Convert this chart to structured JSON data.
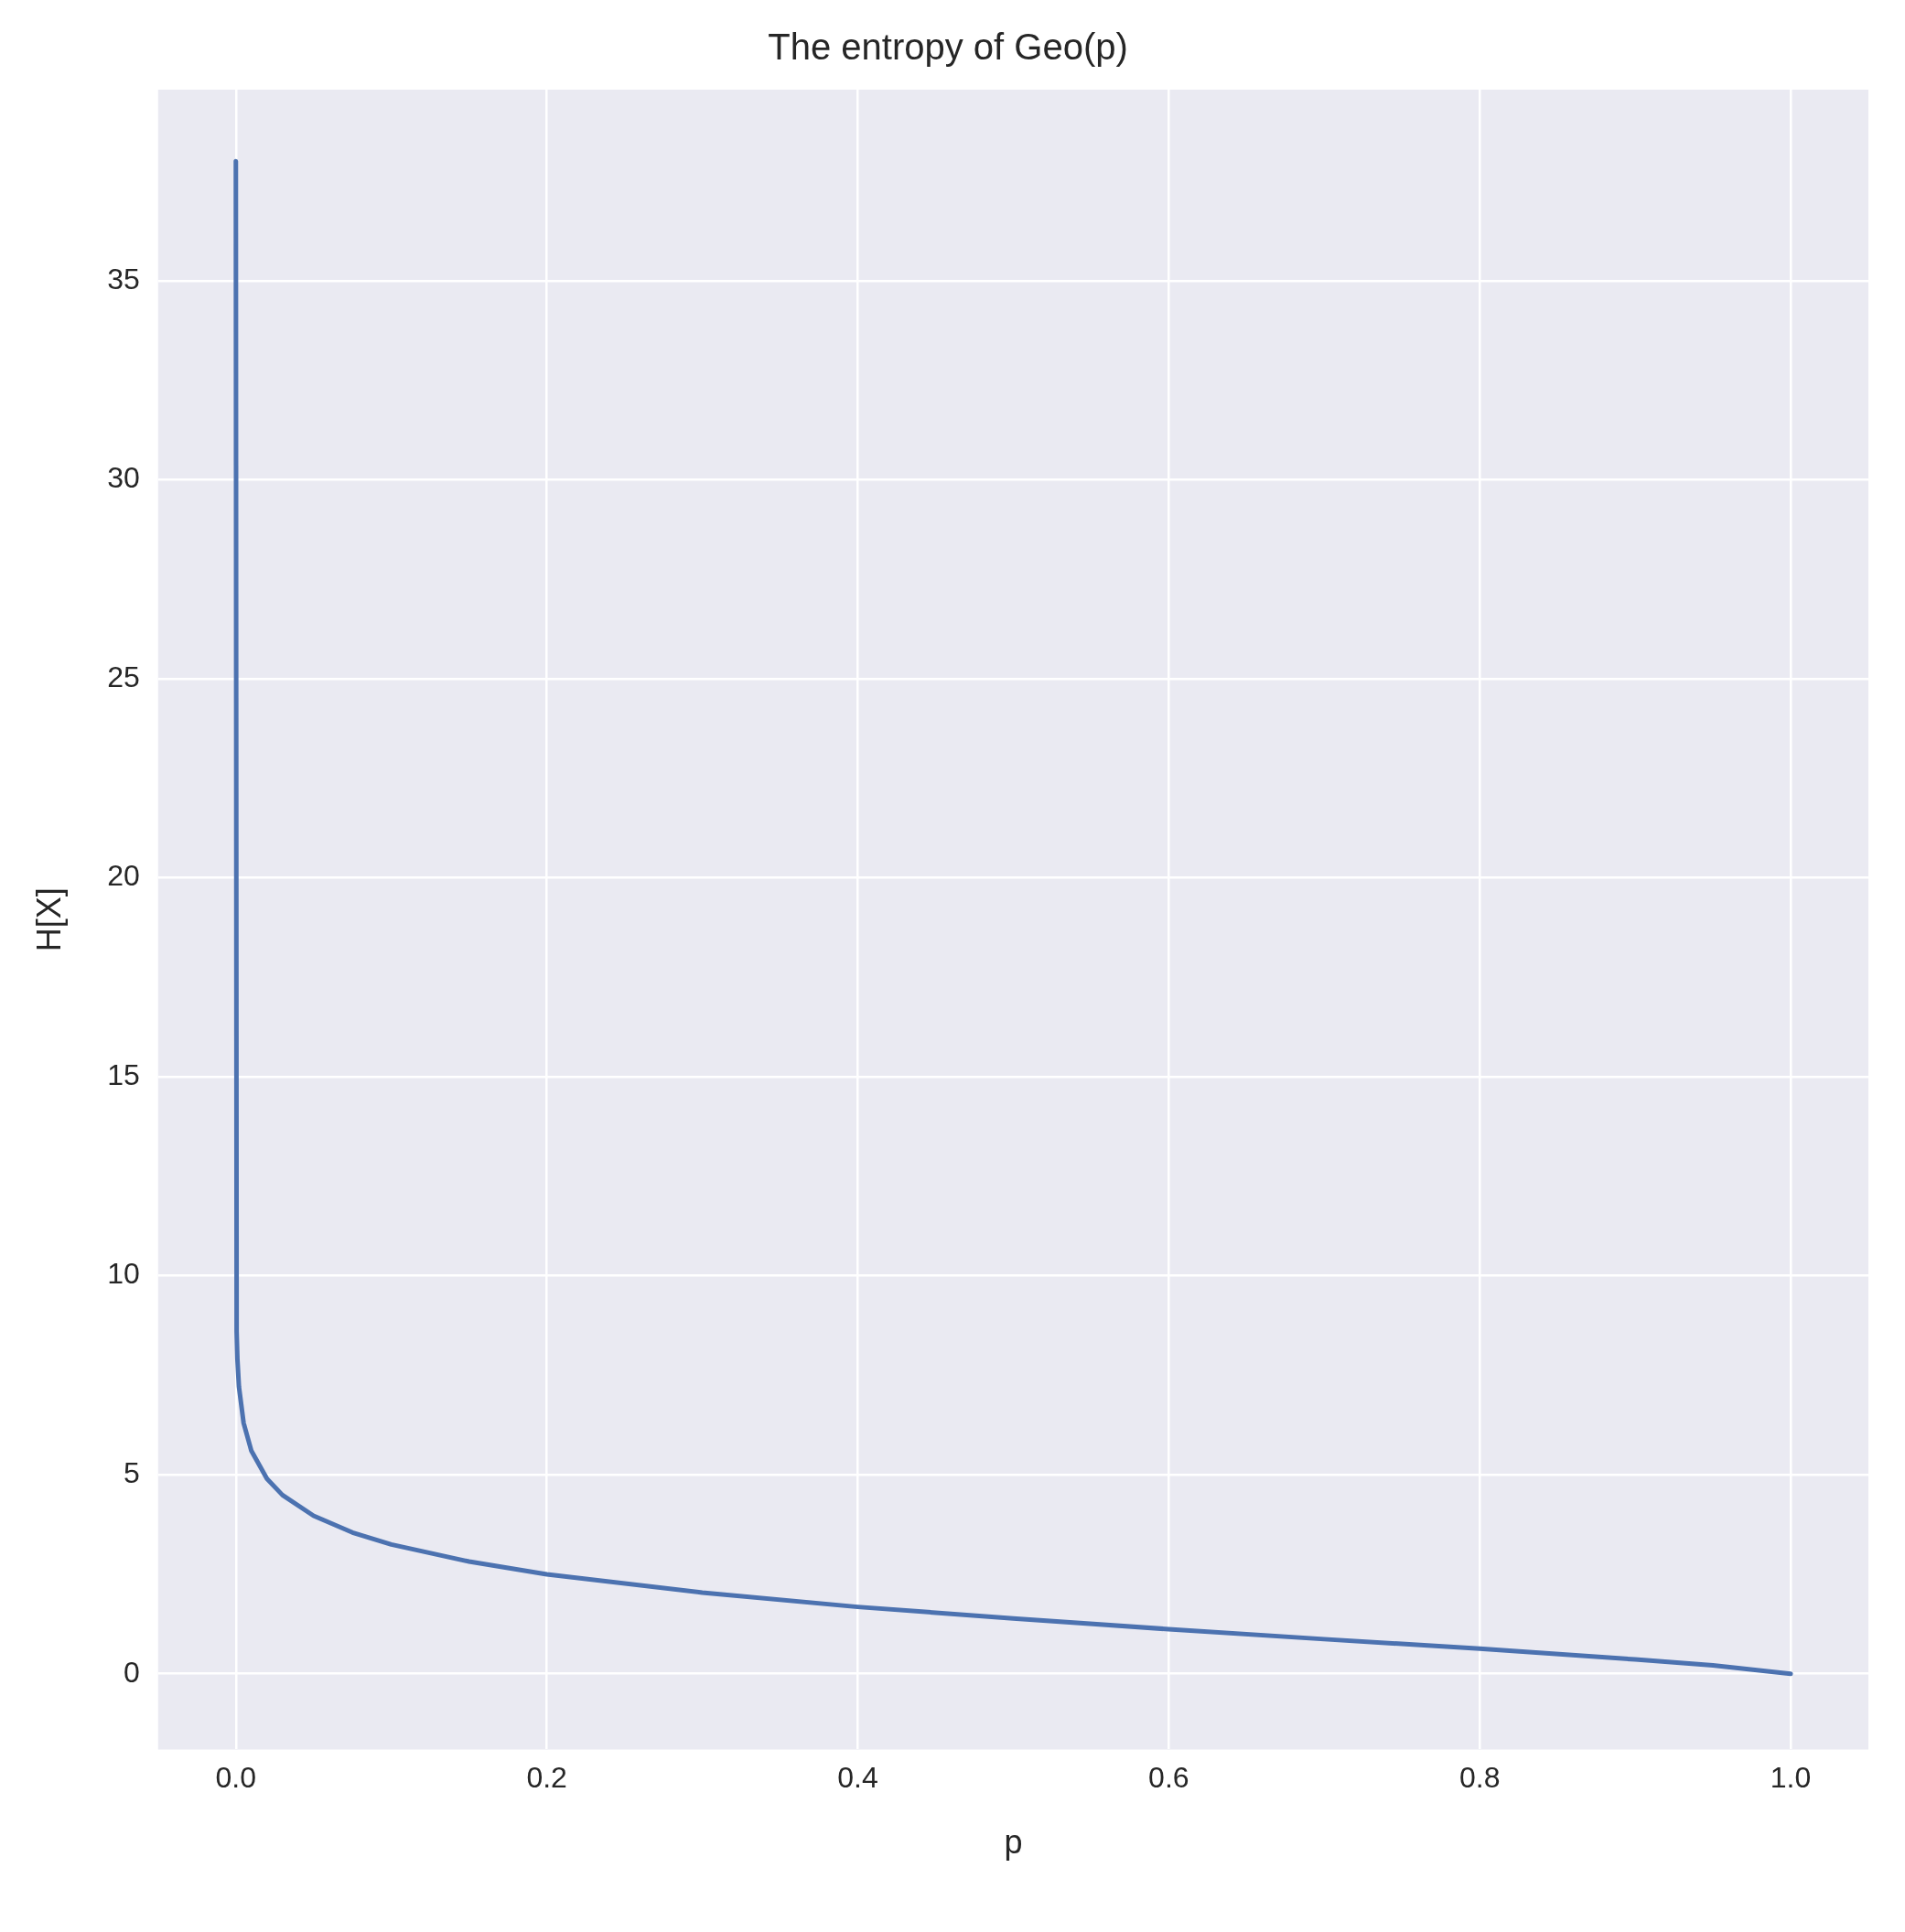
{
  "chart_data": {
    "type": "line",
    "title": "The entropy of Geo(p)",
    "xlabel": "p",
    "ylabel": "H[X]",
    "x": [
      0,
      0.0005,
      0.001,
      0.002,
      0.005,
      0.01,
      0.02,
      0.03,
      0.05,
      0.075,
      0.1,
      0.15,
      0.2,
      0.3,
      0.4,
      0.5,
      0.6,
      0.7,
      0.8,
      0.9,
      0.95,
      1.0
    ],
    "series": [
      {
        "color": "#4c72b0",
        "values": [
          38,
          8.6,
          7.91,
          7.21,
          6.3,
          5.6,
          4.9,
          4.49,
          3.97,
          3.55,
          3.25,
          2.82,
          2.5,
          2.04,
          1.68,
          1.39,
          1.12,
          0.87,
          0.63,
          0.36,
          0.21,
          0
        ]
      }
    ],
    "xlim": [
      -0.05,
      1.05
    ],
    "xticks": [
      {
        "value": 0,
        "label": "0.0"
      },
      {
        "value": 0.2,
        "label": "0.2"
      },
      {
        "value": 0.4,
        "label": "0.4"
      },
      {
        "value": 0.6,
        "label": "0.6"
      },
      {
        "value": 0.8,
        "label": "0.8"
      },
      {
        "value": 1,
        "label": "1.0"
      }
    ],
    "ylim": [
      -1.9,
      39.8
    ],
    "yticks": [
      0,
      5,
      10,
      15,
      20,
      25,
      30,
      35
    ],
    "grid": true,
    "legend": false,
    "marker": "none",
    "line_style": "solid"
  }
}
